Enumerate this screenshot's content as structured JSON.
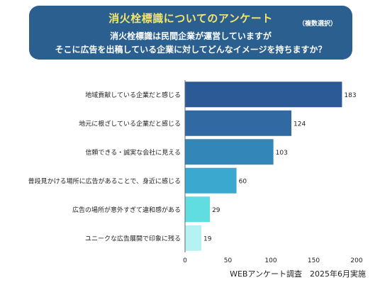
{
  "header": {
    "title": "消火栓標識についてのアンケート",
    "note": "（複数選択）",
    "question_line1": "消火栓標識は民間企業が運営していますが",
    "question_line2": "そこに広告を出稿している企業に対してどんなイメージを持ちますか？"
  },
  "footer": {
    "source": "WEBアンケート調査　2025年6月実施"
  },
  "chart_data": {
    "type": "bar",
    "orientation": "horizontal",
    "categories": [
      "地域貢献している企業だと感じる",
      "地元に根ざしている企業だと感じる",
      "信頼できる・誠実な会社に見える",
      "普段見かける場所に広告があることで、身近に感じる",
      "広告の場所が意外すぎて違和感がある",
      "ユニークな広告展開で印象に残る"
    ],
    "values": [
      183,
      124,
      103,
      60,
      29,
      19
    ],
    "bar_colors": [
      "#2c5a96",
      "#3169a3",
      "#3286b8",
      "#3aa8cf",
      "#5fdde0",
      "#b5f2f4"
    ],
    "xlim": [
      0,
      200
    ],
    "xticks": [
      0,
      50,
      100,
      150,
      200
    ],
    "grid": false
  }
}
